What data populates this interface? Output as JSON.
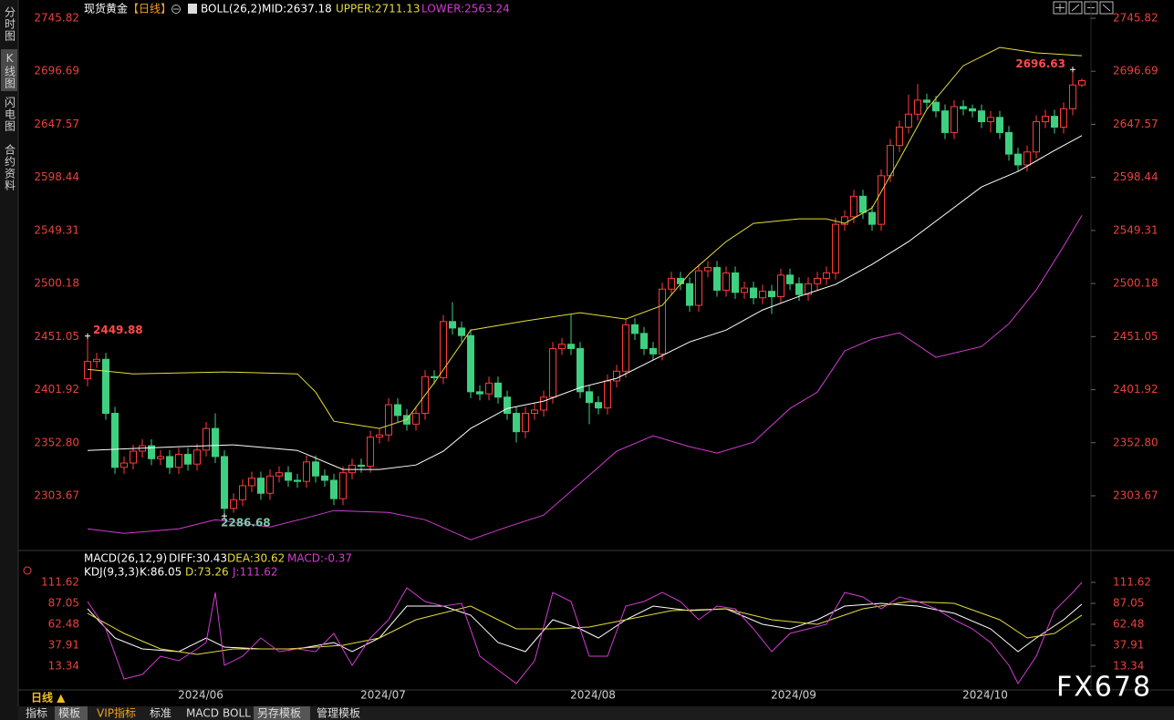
{
  "sidebar": {
    "tabs": [
      "分时图",
      "K线图",
      "闪电图",
      "合约资料"
    ]
  },
  "header": {
    "symbol": "现货黄金",
    "period": "【日线】",
    "indicator": "BOLL(26,2)",
    "mid": "MID:2637.18",
    "upper": "UPPER:2711.13",
    "lower": "LOWER:2563.24"
  },
  "lower_header": {
    "macd": "MACD(26,12,9)",
    "diff": "DIFF:30.43",
    "dea": "DEA:30.62",
    "macd_value": "MACD:-0.37",
    "kdj": "KDJ(9,3,3)",
    "k": "K:86.05",
    "d": "D:73.26",
    "j": "J:111.62"
  },
  "footer": {
    "period": "日线 ▲",
    "tabs": [
      "指标",
      "模板",
      "VIP指标",
      "标准",
      "MACD",
      "BOLL",
      "另存模板",
      "管理模板"
    ],
    "watermark": "FX678"
  },
  "chart_data": [
    {
      "type": "candlestick",
      "up_color": "#ff3b3b",
      "down_color": "#3fcf80",
      "xlim": [
        -0.6,
        109.9
      ],
      "ylim": [
        2256.4,
        2755.95
      ],
      "yticks": [
        2303.67,
        {
          "value": 2352.8,
          "label": "2352.80"
        },
        2401.92,
        2451.05,
        2500.18,
        2549.31,
        2598.44,
        2647.57,
        2696.69,
        2745.82
      ],
      "open": [
        2412,
        2428,
        2430,
        2380,
        2330,
        2334,
        2345,
        2350,
        2338,
        2340,
        2330,
        2342,
        2333,
        2346,
        2366,
        2340,
        2292,
        2300,
        2313,
        2320,
        2306,
        2322,
        2325,
        2318,
        2317,
        2335,
        2322,
        2318,
        2301,
        2325,
        2332,
        2331,
        2358,
        2360,
        2388,
        2378,
        2370,
        2380,
        2414,
        2413,
        2465,
        2459,
        2452,
        2400,
        2398,
        2408,
        2395,
        2380,
        2363,
        2380,
        2383,
        2395,
        2440,
        2444,
        2440,
        2400,
        2390,
        2385,
        2410,
        2419,
        2462,
        2454,
        2440,
        2435,
        2495,
        2505,
        2500,
        2480,
        2512,
        2515,
        2494,
        2510,
        2492,
        2496,
        2487,
        2493,
        2488,
        2508,
        2500,
        2490,
        2500,
        2505,
        2510,
        2555,
        2562,
        2581,
        2566,
        2555,
        2600,
        2628,
        2645,
        2657,
        2670,
        2668,
        2660,
        2640,
        2664,
        2662,
        2660,
        2650,
        2654,
        2640,
        2620,
        2610,
        2622,
        2650,
        2655,
        2645,
        2662,
        2684
      ],
      "high": [
        2449.88,
        2436,
        2436,
        2386,
        2340,
        2351,
        2356,
        2356,
        2346,
        2346,
        2348,
        2348,
        2352,
        2372,
        2380,
        2346,
        2306,
        2319,
        2326,
        2326,
        2328,
        2331,
        2331,
        2324,
        2341,
        2341,
        2328,
        2324,
        2331,
        2338,
        2338,
        2364,
        2366,
        2394,
        2394,
        2384,
        2386,
        2420,
        2420,
        2471,
        2483,
        2465,
        2458,
        2406,
        2414,
        2414,
        2401,
        2386,
        2386,
        2389,
        2401,
        2446,
        2450,
        2472,
        2446,
        2406,
        2396,
        2416,
        2425,
        2468,
        2468,
        2460,
        2446,
        2501,
        2511,
        2511,
        2506,
        2518,
        2521,
        2521,
        2516,
        2516,
        2502,
        2502,
        2499,
        2499,
        2514,
        2514,
        2506,
        2506,
        2511,
        2516,
        2561,
        2568,
        2587,
        2587,
        2572,
        2606,
        2634,
        2651,
        2675,
        2685,
        2676,
        2674,
        2666,
        2670,
        2670,
        2666,
        2666,
        2660,
        2660,
        2646,
        2626,
        2628,
        2656,
        2661,
        2661,
        2668,
        2696.63,
        2690
      ],
      "low": [
        2405,
        2422,
        2374,
        2324,
        2324,
        2328,
        2339,
        2332,
        2332,
        2324,
        2324,
        2327,
        2327,
        2340,
        2334,
        2286.68,
        2288,
        2294,
        2307,
        2300,
        2300,
        2316,
        2312,
        2311,
        2311,
        2316,
        2312,
        2295,
        2295,
        2319,
        2325,
        2325,
        2352,
        2354,
        2372,
        2364,
        2364,
        2374,
        2407,
        2407,
        2453,
        2446,
        2394,
        2392,
        2392,
        2389,
        2374,
        2353,
        2357,
        2374,
        2377,
        2389,
        2434,
        2434,
        2394,
        2370,
        2379,
        2379,
        2404,
        2413,
        2448,
        2434,
        2429,
        2429,
        2489,
        2494,
        2474,
        2474,
        2506,
        2488,
        2488,
        2486,
        2486,
        2481,
        2481,
        2472,
        2482,
        2494,
        2484,
        2484,
        2494,
        2499,
        2504,
        2549,
        2556,
        2560,
        2549,
        2549,
        2594,
        2622,
        2639,
        2651,
        2662,
        2654,
        2634,
        2634,
        2656,
        2654,
        2644,
        2640,
        2634,
        2614,
        2604,
        2604,
        2616,
        2644,
        2639,
        2639,
        2656,
        2682
      ],
      "close": [
        2428,
        2430,
        2380,
        2330,
        2334,
        2345,
        2350,
        2338,
        2340,
        2330,
        2342,
        2333,
        2346,
        2366,
        2340,
        2292,
        2300,
        2313,
        2320,
        2306,
        2322,
        2325,
        2318,
        2317,
        2335,
        2322,
        2318,
        2301,
        2325,
        2332,
        2331,
        2358,
        2360,
        2388,
        2378,
        2370,
        2380,
        2414,
        2413,
        2465,
        2459,
        2452,
        2400,
        2398,
        2408,
        2395,
        2380,
        2363,
        2380,
        2383,
        2395,
        2440,
        2444,
        2440,
        2400,
        2390,
        2385,
        2410,
        2419,
        2462,
        2454,
        2440,
        2435,
        2495,
        2505,
        2500,
        2480,
        2512,
        2515,
        2494,
        2510,
        2492,
        2496,
        2487,
        2493,
        2488,
        2508,
        2500,
        2490,
        2500,
        2505,
        2510,
        2555,
        2562,
        2581,
        2566,
        2555,
        2600,
        2628,
        2645,
        2657,
        2670,
        2668,
        2660,
        2640,
        2664,
        2662,
        2660,
        2650,
        2654,
        2640,
        2620,
        2610,
        2622,
        2650,
        2655,
        2645,
        2662,
        2684,
        2688
      ],
      "series": [
        {
          "color": "#ffffff",
          "x": [
            0,
            10,
            16,
            23,
            28,
            32,
            36,
            39,
            42,
            46,
            50,
            54,
            58,
            62,
            66,
            70,
            74,
            78,
            82,
            86,
            90,
            94,
            98,
            102,
            106,
            109
          ],
          "values": [
            2345.7,
            2349.1,
            2350.8,
            2345.7,
            2328.0,
            2328.0,
            2332.2,
            2344.9,
            2366.0,
            2384.5,
            2391.3,
            2403.9,
            2412.4,
            2429.3,
            2446.1,
            2457.1,
            2475.7,
            2488.3,
            2499.3,
            2517.9,
            2539.0,
            2564.3,
            2589.6,
            2604.0,
            2623.4,
            2637.18
          ]
        },
        {
          "color": "#e6dc3c",
          "x": [
            0,
            5,
            15,
            23,
            25,
            27,
            32,
            35,
            38,
            42,
            48,
            54,
            59,
            63,
            66,
            70,
            73,
            78,
            81,
            83,
            86,
            89,
            92,
            96,
            100,
            104,
            109
          ],
          "values": [
            2420.8,
            2416.6,
            2418.3,
            2416.6,
            2399.7,
            2372.7,
            2366.0,
            2374.4,
            2408.2,
            2457.1,
            2465.6,
            2473.2,
            2467.3,
            2479.9,
            2509.5,
            2539.0,
            2555.9,
            2560.1,
            2560.1,
            2555.9,
            2570.2,
            2615.0,
            2661.4,
            2701.9,
            2718.8,
            2713.8,
            2711.13
          ]
        },
        {
          "color": "#d23cd2",
          "x": [
            0,
            4,
            10,
            14,
            20,
            24,
            27,
            33,
            37,
            42,
            46,
            50,
            54,
            58,
            62,
            66,
            69,
            73,
            77,
            80,
            83,
            86,
            89,
            93,
            98,
            101,
            104,
            107,
            109
          ],
          "values": [
            2273.1,
            2268.9,
            2273.1,
            2281.5,
            2274.8,
            2283.2,
            2290.0,
            2288.3,
            2281.5,
            2263.0,
            2274.8,
            2285.8,
            2315.3,
            2344.9,
            2359.2,
            2349.1,
            2343.2,
            2353.3,
            2384.5,
            2399.7,
            2437.7,
            2448.7,
            2454.6,
            2431.8,
            2441.9,
            2463.0,
            2494.3,
            2534.8,
            2563.24
          ]
        }
      ]
    },
    {
      "type": "line",
      "xlim": [
        -0.6,
        109.9
      ],
      "xticks": [
        {
          "value": 12.4,
          "label": "2024/06"
        },
        {
          "value": 32.4,
          "label": "2024/07"
        },
        {
          "value": 55.4,
          "label": "2024/08"
        },
        {
          "value": 77.4,
          "label": "2024/09"
        },
        {
          "value": 98.4,
          "label": "2024/10"
        }
      ],
      "ylim": [
        -12.3,
        131.9
      ],
      "yticks": [
        13.34,
        37.91,
        62.48,
        87.05,
        111.62
      ],
      "series": [
        {
          "color": "#ffffff",
          "x": [
            0,
            3,
            6,
            10,
            13,
            15,
            19,
            23,
            27,
            29,
            32,
            35,
            39,
            42,
            45,
            48,
            51,
            54,
            56,
            59,
            62,
            66,
            70,
            74,
            77,
            80,
            83,
            87,
            91,
            95,
            99,
            102,
            104,
            107,
            109
          ],
          "values": [
            80.6,
            46.4,
            33.6,
            30.4,
            46.4,
            35.8,
            33.6,
            33.6,
            41.1,
            30.4,
            46.4,
            83.8,
            83.8,
            73.2,
            41.1,
            30.4,
            67.8,
            57.1,
            46.4,
            67.8,
            83.8,
            78.5,
            80.6,
            62.5,
            57.1,
            67.8,
            83.8,
            87.0,
            83.8,
            75.4,
            57.1,
            30.4,
            46.4,
            67.8,
            86.05
          ]
        },
        {
          "color": "#e6dc3c",
          "x": [
            0,
            4,
            8,
            12,
            16,
            22,
            28,
            32,
            36,
            42,
            47,
            51,
            55,
            59,
            64,
            70,
            75,
            80,
            85,
            90,
            95,
            100,
            103,
            106,
            109
          ],
          "values": [
            75.4,
            51.8,
            33.6,
            27.2,
            33.6,
            33.6,
            37.9,
            46.4,
            67.8,
            83.8,
            57.1,
            57.1,
            59.3,
            67.8,
            78.5,
            80.6,
            67.8,
            62.5,
            80.6,
            89.2,
            87.0,
            67.8,
            46.4,
            51.8,
            73.26
          ]
        },
        {
          "color": "#d23cd2",
          "x": [
            0,
            2,
            4,
            6,
            8,
            10,
            12,
            13,
            14,
            15,
            17,
            19,
            21,
            23,
            25,
            27,
            29,
            31,
            33,
            35,
            37,
            39,
            41,
            43,
            45,
            47,
            49,
            51,
            53,
            55,
            57,
            59,
            61,
            63,
            65,
            67,
            69,
            71,
            73,
            75,
            77,
            79,
            81,
            83,
            85,
            87,
            89,
            91,
            93,
            95,
            97,
            99,
            101,
            102,
            104,
            106,
            108,
            109
          ],
          "values": [
            89.2,
            57.1,
            -1.6,
            3.7,
            25.1,
            19.7,
            33.6,
            41.1,
            99.8,
            14.4,
            25.1,
            46.4,
            30.4,
            33.6,
            30.4,
            51.8,
            14.4,
            46.4,
            67.8,
            105.2,
            89.2,
            83.8,
            87.0,
            25.1,
            9.0,
            -7.0,
            19.7,
            99.8,
            89.2,
            25.1,
            25.1,
            83.8,
            89.2,
            99.8,
            89.2,
            67.8,
            83.8,
            80.6,
            57.1,
            30.4,
            51.8,
            57.1,
            62.5,
            99.8,
            94.5,
            80.6,
            94.5,
            89.2,
            80.6,
            67.8,
            57.1,
            41.1,
            14.4,
            -7.0,
            25.1,
            78.5,
            99.8,
            111.62
          ]
        }
      ]
    }
  ]
}
